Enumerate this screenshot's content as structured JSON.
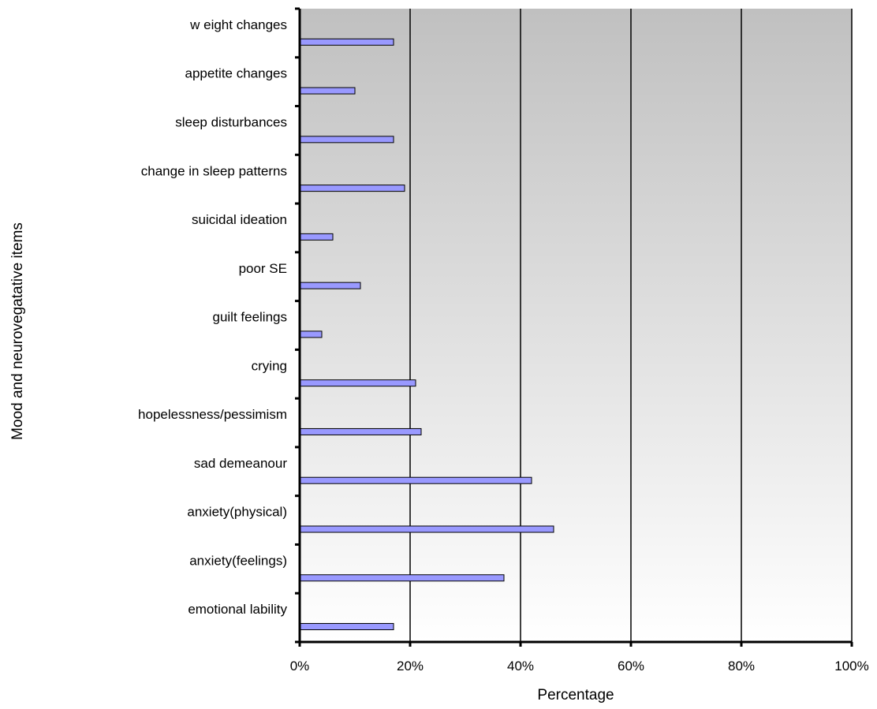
{
  "chart_data": {
    "type": "bar",
    "orientation": "horizontal",
    "categories": [
      "emotional lability",
      "anxiety(feelings)",
      "anxiety(physical)",
      "sad demeanour",
      "hopelessness/pessimism",
      "crying",
      "guilt feelings",
      "poor SE",
      "suicidal ideation",
      "change in sleep patterns",
      "sleep disturbances",
      "appetite changes",
      "w eight changes"
    ],
    "values": [
      17,
      37,
      46,
      42,
      22,
      21,
      4,
      11,
      6,
      19,
      17,
      10,
      17
    ],
    "xlabel": "Percentage",
    "ylabel": "Mood and neurovegatative items",
    "xlim": [
      0,
      100
    ],
    "xticks": [
      "0%",
      "20%",
      "40%",
      "60%",
      "80%",
      "100%"
    ],
    "grid": true,
    "legend": "none",
    "colors": {
      "bar_fill": "#9999ff",
      "bar_stroke": "#000000",
      "plot_bg_top": "#c0c0c0",
      "plot_bg_bottom": "#ffffff"
    }
  }
}
